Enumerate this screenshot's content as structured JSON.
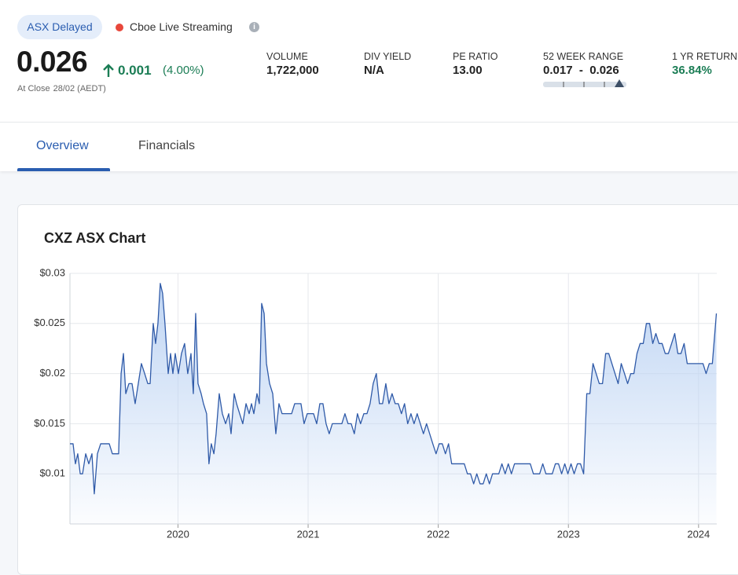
{
  "header": {
    "badge": "ASX Delayed",
    "live": "Cboe Live Streaming",
    "info": "i",
    "price": "0.026",
    "change": "0.001",
    "change_pct": "(4.00%)",
    "close_label": "At Close",
    "close_date": "28/02 (AEDT)"
  },
  "stats": [
    {
      "label": "VOLUME",
      "value": "1,722,000"
    },
    {
      "label": "DIV YIELD",
      "value": "N/A"
    },
    {
      "label": "PE RATIO",
      "value": "13.00"
    },
    {
      "label": "52 WEEK RANGE",
      "value": "0.017  -  0.026"
    },
    {
      "label": "1 YR RETURN",
      "value": "36.84%"
    }
  ],
  "tabs": [
    "Overview",
    "Financials"
  ],
  "chart_data": {
    "type": "area",
    "title": "CXZ ASX Chart",
    "color": "#2f5aa8",
    "fill": "#bcd3f3",
    "grid": true,
    "x": [
      2019.17,
      2019.194,
      2019.212,
      2019.23,
      2019.249,
      2019.267,
      2019.291,
      2019.315,
      2019.339,
      2019.357,
      2019.381,
      2019.406,
      2019.472,
      2019.496,
      2019.544,
      2019.563,
      2019.581,
      2019.599,
      2019.623,
      2019.647,
      2019.671,
      2019.695,
      2019.719,
      2019.744,
      2019.768,
      2019.786,
      2019.81,
      2019.828,
      2019.846,
      2019.864,
      2019.882,
      2019.9,
      2019.925,
      2019.943,
      2019.961,
      2019.979,
      2020.003,
      2020.027,
      2020.051,
      2020.075,
      2020.1,
      2020.118,
      2020.136,
      2020.154,
      2020.178,
      2020.196,
      2020.22,
      2020.238,
      2020.256,
      2020.276,
      2020.293,
      2020.317,
      2020.341,
      2020.366,
      2020.39,
      2020.408,
      2020.432,
      2020.45,
      2020.474,
      2020.498,
      2020.523,
      2020.547,
      2020.565,
      2020.583,
      2020.607,
      2020.625,
      2020.643,
      2020.662,
      2020.68,
      2020.704,
      2020.728,
      2020.752,
      2020.776,
      2020.8,
      2020.849,
      2020.873,
      2020.897,
      2020.921,
      2020.945,
      2020.969,
      2020.993,
      2021.017,
      2021.042,
      2021.066,
      2021.09,
      2021.114,
      2021.138,
      2021.162,
      2021.186,
      2021.235,
      2021.259,
      2021.283,
      2021.307,
      2021.331,
      2021.355,
      2021.379,
      2021.403,
      2021.428,
      2021.452,
      2021.476,
      2021.5,
      2021.524,
      2021.548,
      2021.572,
      2021.597,
      2021.621,
      2021.645,
      2021.669,
      2021.693,
      2021.717,
      2021.741,
      2021.765,
      2021.79,
      2021.814,
      2021.838,
      2021.862,
      2021.886,
      2021.91,
      2021.934,
      2021.958,
      2021.983,
      2022.007,
      2022.031,
      2022.055,
      2022.079,
      2022.103,
      2022.2,
      2022.224,
      2022.248,
      2022.272,
      2022.296,
      2022.321,
      2022.345,
      2022.369,
      2022.393,
      2022.417,
      2022.465,
      2022.489,
      2022.514,
      2022.538,
      2022.562,
      2022.586,
      2022.61,
      2022.707,
      2022.731,
      2022.779,
      2022.803,
      2022.827,
      2022.876,
      2022.9,
      2022.924,
      2022.948,
      2022.972,
      2022.996,
      2023.02,
      2023.044,
      2023.069,
      2023.093,
      2023.117,
      2023.141,
      2023.165,
      2023.189,
      2023.213,
      2023.237,
      2023.262,
      2023.286,
      2023.31,
      2023.334,
      2023.358,
      2023.382,
      2023.406,
      2023.431,
      2023.455,
      2023.479,
      2023.503,
      2023.527,
      2023.551,
      2023.575,
      2023.599,
      2023.624,
      2023.648,
      2023.672,
      2023.696,
      2023.72,
      2023.744,
      2023.768,
      2023.793,
      2023.817,
      2023.841,
      2023.865,
      2023.889,
      2023.913,
      2023.937,
      2023.961,
      2023.986,
      2024.01,
      2024.034,
      2024.058,
      2024.082,
      2024.106,
      2024.137
    ],
    "values": [
      0.013,
      0.013,
      0.011,
      0.012,
      0.01,
      0.01,
      0.012,
      0.011,
      0.012,
      0.008,
      0.012,
      0.013,
      0.013,
      0.012,
      0.012,
      0.02,
      0.022,
      0.018,
      0.019,
      0.019,
      0.017,
      0.019,
      0.021,
      0.02,
      0.019,
      0.019,
      0.025,
      0.023,
      0.025,
      0.029,
      0.028,
      0.025,
      0.02,
      0.022,
      0.02,
      0.022,
      0.02,
      0.022,
      0.023,
      0.02,
      0.022,
      0.018,
      0.026,
      0.019,
      0.018,
      0.017,
      0.016,
      0.011,
      0.013,
      0.012,
      0.014,
      0.018,
      0.016,
      0.015,
      0.016,
      0.014,
      0.018,
      0.017,
      0.016,
      0.015,
      0.017,
      0.016,
      0.017,
      0.016,
      0.018,
      0.017,
      0.027,
      0.026,
      0.021,
      0.019,
      0.018,
      0.014,
      0.017,
      0.016,
      0.016,
      0.016,
      0.017,
      0.017,
      0.017,
      0.015,
      0.016,
      0.016,
      0.016,
      0.015,
      0.017,
      0.017,
      0.015,
      0.014,
      0.015,
      0.015,
      0.015,
      0.016,
      0.015,
      0.015,
      0.014,
      0.016,
      0.015,
      0.016,
      0.016,
      0.017,
      0.019,
      0.02,
      0.017,
      0.017,
      0.019,
      0.017,
      0.018,
      0.017,
      0.017,
      0.016,
      0.017,
      0.015,
      0.016,
      0.015,
      0.016,
      0.015,
      0.014,
      0.015,
      0.014,
      0.013,
      0.012,
      0.013,
      0.013,
      0.012,
      0.013,
      0.011,
      0.011,
      0.01,
      0.01,
      0.009,
      0.01,
      0.009,
      0.009,
      0.01,
      0.009,
      0.01,
      0.01,
      0.011,
      0.01,
      0.011,
      0.01,
      0.011,
      0.011,
      0.011,
      0.01,
      0.01,
      0.011,
      0.01,
      0.01,
      0.011,
      0.011,
      0.01,
      0.011,
      0.01,
      0.011,
      0.01,
      0.011,
      0.011,
      0.01,
      0.018,
      0.018,
      0.021,
      0.02,
      0.019,
      0.019,
      0.022,
      0.022,
      0.021,
      0.02,
      0.019,
      0.021,
      0.02,
      0.019,
      0.02,
      0.02,
      0.022,
      0.023,
      0.023,
      0.025,
      0.025,
      0.023,
      0.024,
      0.023,
      0.023,
      0.022,
      0.022,
      0.023,
      0.024,
      0.022,
      0.022,
      0.023,
      0.021,
      0.021,
      0.021,
      0.021,
      0.021,
      0.021,
      0.02,
      0.021,
      0.021,
      0.026
    ],
    "xlim": [
      2019.17,
      2024.14
    ],
    "xticks": [
      2020,
      2021,
      2022,
      2023,
      2024
    ],
    "ylim": [
      0.005,
      0.03
    ],
    "yticks": [
      {
        "value": 0.01,
        "label": "$0.01"
      },
      {
        "value": 0.015,
        "label": "$0.015"
      },
      {
        "value": 0.02,
        "label": "$0.02"
      },
      {
        "value": 0.025,
        "label": "$0.025"
      },
      {
        "value": 0.03,
        "label": "$0.03"
      }
    ]
  }
}
